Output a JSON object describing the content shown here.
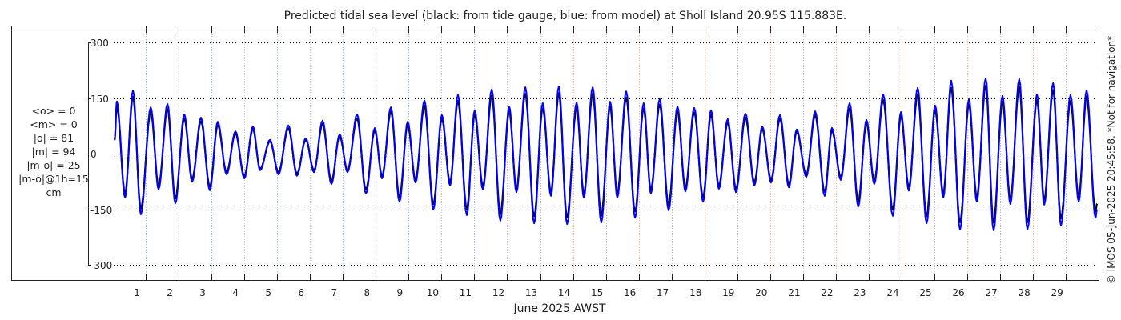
{
  "chart_data": {
    "type": "line",
    "title": "Predicted tidal sea level (black: from tide gauge, blue: from model) at Sholl Island 20.95S 115.883E.",
    "xlabel": "June 2025 AWST",
    "ylabel": "",
    "x_units": "days since 1 June 2025 00:00",
    "xlim": [
      0,
      30
    ],
    "ylim": [
      -340,
      340
    ],
    "yticks": [
      300,
      150,
      0,
      -150,
      -300
    ],
    "ytick_labels": [
      "300",
      "150",
      "0",
      "-150",
      "-300"
    ],
    "xtick_labels": [
      "1",
      "2",
      "3",
      "4",
      "5",
      "6",
      "7",
      "8",
      "9",
      "10",
      "11",
      "12",
      "13",
      "14",
      "15",
      "16",
      "17",
      "18",
      "19",
      "20",
      "21",
      "22",
      "23",
      "24",
      "25",
      "26",
      "27",
      "28",
      "29"
    ],
    "grid": true,
    "stats": [
      "<o> = 0",
      "<m> = 0",
      "|o| = 81",
      "|m| = 94",
      "|m-o| = 25",
      "|m-o|@1h=15",
      "cm"
    ],
    "side_note": "© IMOS 05-Jun-2025 20:45:58. *Not for navigation*",
    "colors": {
      "observed": "#000000",
      "model": "#0000ff",
      "grid": "#000000",
      "day_line_a": "#b8c8f0",
      "day_line_b": "#f0c8b0"
    },
    "t": [
      0.05,
      0.12,
      0.37,
      0.61,
      0.85,
      1.15,
      1.39,
      1.66,
      1.9,
      2.17,
      2.41,
      2.68,
      2.95,
      3.19,
      3.46,
      3.73,
      4.0,
      4.26,
      4.48,
      4.78,
      5.04,
      5.34,
      5.6,
      5.87,
      6.12,
      6.38,
      6.65,
      6.9,
      7.14,
      7.43,
      7.7,
      7.97,
      8.19,
      8.46,
      8.72,
      8.97,
      9.21,
      9.48,
      9.75,
      10.01,
      10.26,
      10.5,
      10.77,
      11.01,
      11.26,
      11.53,
      11.79,
      12.06,
      12.28,
      12.55,
      12.82,
      13.08,
      13.33,
      13.57,
      13.82,
      14.11,
      14.33,
      14.6,
      14.86,
      15.13,
      15.35,
      15.62,
      15.89,
      16.15,
      16.37,
      16.64,
      16.91,
      17.18,
      17.42,
      17.69,
      17.96,
      18.2,
      18.44,
      18.71,
      18.96,
      19.25,
      19.52,
      19.76,
      20.03,
      20.3,
      20.57,
      20.81,
      21.1,
      21.37,
      21.66,
      21.88,
      22.15,
      22.42,
      22.68,
      22.93,
      23.17,
      23.44,
      23.73,
      23.98,
      24.22,
      24.49,
      24.76,
      25.02,
      25.27,
      25.51,
      25.78,
      26.05,
      26.29,
      26.56,
      26.8,
      27.07,
      27.31,
      27.58,
      27.83,
      28.12,
      28.34,
      28.61,
      28.85,
      29.14,
      29.39,
      29.63,
      29.9,
      29.95
    ],
    "series": [
      {
        "name": "tide gauge (observed)",
        "color": "#000000",
        "values": [
          36,
          127,
          -107,
          153,
          -148,
          113,
          -87,
          121,
          -121,
          95,
          -68,
          87,
          -89,
          77,
          -50,
          54,
          -60,
          66,
          -41,
          33,
          -50,
          68,
          -54,
          37,
          -45,
          80,
          -74,
          47,
          -45,
          95,
          -97,
          62,
          -60,
          113,
          -117,
          77,
          -70,
          129,
          -136,
          94,
          -77,
          142,
          -149,
          105,
          -87,
          156,
          -163,
          114,
          -94,
          161,
          -169,
          122,
          -103,
          163,
          -171,
          124,
          -107,
          161,
          -167,
          126,
          -107,
          151,
          -156,
          122,
          -97,
          132,
          -138,
          114,
          -92,
          111,
          -117,
          105,
          -86,
          84,
          -94,
          97,
          -77,
          66,
          -70,
          94,
          -82,
          59,
          -57,
          103,
          -103,
          62,
          -64,
          122,
          -129,
          82,
          -74,
          144,
          -151,
          101,
          -90,
          159,
          -169,
          117,
          -107,
          177,
          -185,
          132,
          -117,
          183,
          -186,
          140,
          -122,
          181,
          -185,
          144,
          -124,
          171,
          -175,
          142,
          -117,
          154,
          -156,
          -135
        ]
      },
      {
        "name": "model",
        "color": "#0000ff",
        "values": [
          40,
          141,
          -119,
          170,
          -164,
          125,
          -97,
          134,
          -134,
          106,
          -76,
          97,
          -99,
          86,
          -56,
          60,
          -67,
          73,
          -45,
          37,
          -56,
          76,
          -60,
          41,
          -50,
          89,
          -82,
          52,
          -50,
          106,
          -108,
          69,
          -67,
          125,
          -130,
          86,
          -78,
          143,
          -151,
          104,
          -86,
          158,
          -166,
          117,
          -97,
          173,
          -181,
          127,
          -104,
          179,
          -188,
          136,
          -114,
          181,
          -190,
          138,
          -119,
          179,
          -186,
          140,
          -119,
          168,
          -173,
          136,
          -108,
          147,
          -153,
          127,
          -102,
          123,
          -130,
          117,
          -95,
          93,
          -104,
          108,
          -86,
          73,
          -78,
          104,
          -91,
          65,
          -63,
          114,
          -114,
          69,
          -71,
          136,
          -143,
          91,
          -82,
          160,
          -168,
          112,
          -100,
          177,
          -188,
          130,
          -119,
          197,
          -205,
          147,
          -130,
          203,
          -207,
          156,
          -136,
          201,
          -205,
          160,
          -138,
          190,
          -194,
          158,
          -130,
          171,
          -173,
          -150
        ]
      }
    ]
  }
}
